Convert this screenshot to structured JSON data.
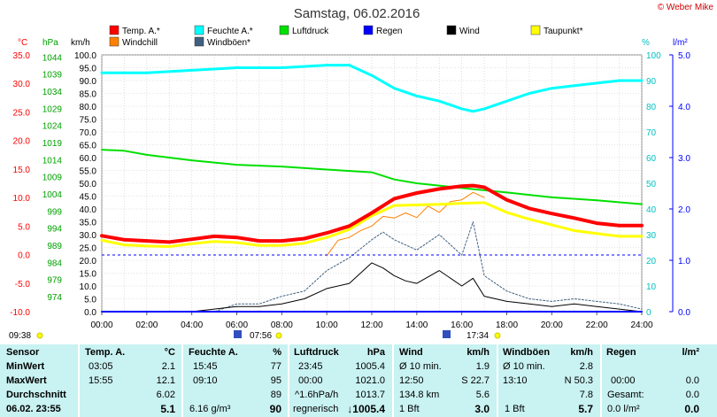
{
  "title": "Samstag, 06.02.2016",
  "copyright": "© Weber Mike",
  "units": {
    "celsius": "°C",
    "hpa": "hPa",
    "kmh": "km/h",
    "percent": "%",
    "lm2": "l/m²"
  },
  "legend": [
    {
      "label": "Temp. A.*",
      "color": "#ff0000"
    },
    {
      "label": "Feuchte A.*",
      "color": "#00ffff"
    },
    {
      "label": "Luftdruck",
      "color": "#00e000"
    },
    {
      "label": "Regen",
      "color": "#0000ff"
    },
    {
      "label": "Wind",
      "color": "#000000"
    },
    {
      "label": "Taupunkt*",
      "color": "#ffff00"
    },
    {
      "label": "Windchill",
      "color": "#ff8000"
    },
    {
      "label": "Windböen*",
      "color": "#406080"
    }
  ],
  "axes": {
    "temp_ticks": [
      "35.0",
      "30.0",
      "25.0",
      "20.0",
      "15.0",
      "10.0",
      "5.0",
      "0.0",
      "-5.0",
      "-10.0"
    ],
    "pressure_ticks": [
      "1044",
      "1039",
      "1034",
      "1029",
      "1024",
      "1019",
      "1014",
      "1009",
      "1004",
      "999",
      "994",
      "989",
      "984",
      "979",
      "974"
    ],
    "wind_ticks": [
      "100.0",
      "95.0",
      "90.0",
      "85.0",
      "80.0",
      "75.0",
      "70.0",
      "65.0",
      "60.0",
      "55.0",
      "50.0",
      "45.0",
      "40.0",
      "35.0",
      "30.0",
      "25.0",
      "20.0",
      "15.0",
      "10.0",
      "5.0",
      "0.0"
    ],
    "humidity_ticks": [
      "100",
      "90",
      "80",
      "70",
      "60",
      "50",
      "40",
      "30",
      "20",
      "10",
      "0"
    ],
    "rain_ticks": [
      "5.0",
      "4.0",
      "3.0",
      "2.0",
      "1.0",
      "0.0"
    ],
    "x_ticks": [
      "00:00",
      "02:00",
      "04:00",
      "06:00",
      "08:00",
      "10:00",
      "12:00",
      "14:00",
      "16:00",
      "18:00",
      "20:00",
      "22:00",
      "24:00"
    ]
  },
  "sun_markers": {
    "sunrise_left": "09:38",
    "sunrise": "07:56",
    "sunset": "17:34"
  },
  "chart_data": {
    "type": "line",
    "title": "Samstag, 06.02.2016",
    "x_unit": "hour",
    "xlim": [
      0,
      24
    ],
    "series": [
      {
        "name": "Temp. A.*",
        "axis": "°C",
        "ylim": [
          -10,
          35
        ],
        "x": [
          0,
          1,
          2,
          3,
          4,
          5,
          6,
          7,
          8,
          9,
          10,
          11,
          12,
          13,
          14,
          15,
          16,
          16.5,
          17,
          18,
          19,
          20,
          21,
          22,
          23,
          24
        ],
        "values": [
          3.3,
          2.6,
          2.4,
          2.2,
          2.7,
          3.2,
          3.0,
          2.4,
          2.4,
          2.8,
          3.8,
          5.0,
          7.3,
          9.8,
          10.8,
          11.5,
          12.0,
          12.1,
          11.8,
          9.6,
          8.1,
          7.2,
          6.4,
          5.5,
          5.1,
          5.1
        ]
      },
      {
        "name": "Feuchte A.*",
        "axis": "%",
        "ylim": [
          0,
          100
        ],
        "x": [
          0,
          2,
          4,
          6,
          8,
          10,
          11,
          12,
          13,
          14,
          15,
          16,
          16.5,
          17,
          18,
          19,
          20,
          21,
          22,
          23,
          24
        ],
        "values": [
          93,
          93,
          94,
          95,
          95,
          96,
          96,
          92,
          87,
          84,
          82,
          79,
          78,
          79,
          82,
          85,
          87,
          88,
          89,
          90,
          90
        ]
      },
      {
        "name": "Luftdruck",
        "axis": "hPa",
        "ylim": [
          974,
          1049
        ],
        "x": [
          0,
          1,
          2,
          3,
          4,
          6,
          8,
          10,
          12,
          13,
          14,
          16,
          18,
          20,
          22,
          24
        ],
        "values": [
          1021.3,
          1021.0,
          1019.8,
          1019.0,
          1018.2,
          1016.9,
          1016.4,
          1015.5,
          1014.7,
          1012.6,
          1011.5,
          1010.1,
          1008.8,
          1007.4,
          1006.5,
          1005.4
        ]
      },
      {
        "name": "Regen",
        "axis": "l/m²",
        "ylim": [
          0,
          5
        ],
        "x": [
          0,
          24
        ],
        "values": [
          0,
          0
        ]
      },
      {
        "name": "Wind",
        "axis": "km/h",
        "ylim": [
          0,
          100
        ],
        "x": [
          0,
          4,
          5,
          6,
          7,
          8,
          9,
          10,
          11,
          12,
          12.5,
          13,
          13.5,
          14,
          15,
          16,
          16.5,
          17,
          18,
          19,
          20,
          21,
          22,
          23,
          24
        ],
        "values": [
          0,
          0,
          1,
          2,
          2,
          3,
          5,
          9,
          11,
          19,
          17,
          14,
          12,
          11,
          16,
          10,
          13,
          6,
          4,
          3,
          2,
          3,
          2,
          1,
          0
        ]
      },
      {
        "name": "Taupunkt*",
        "axis": "°C",
        "ylim": [
          -10,
          35
        ],
        "x": [
          0,
          1,
          2,
          3,
          4,
          5,
          6,
          7,
          8,
          9,
          10,
          11,
          12,
          13,
          14,
          15,
          16,
          17,
          18,
          19,
          20,
          21,
          22,
          23,
          24
        ],
        "values": [
          2.5,
          1.7,
          1.5,
          1.4,
          1.9,
          2.3,
          2.1,
          1.6,
          1.6,
          2.0,
          3.0,
          4.4,
          6.8,
          8.6,
          8.7,
          8.8,
          9.0,
          9.1,
          7.4,
          6.2,
          5.2,
          4.2,
          3.7,
          3.2,
          3.2
        ]
      },
      {
        "name": "Windchill",
        "axis": "°C",
        "ylim": [
          -10,
          35
        ],
        "x": [
          10,
          10.5,
          11,
          11.5,
          12,
          12.5,
          13,
          13.5,
          14,
          14.5,
          15,
          15.5,
          16,
          16.5,
          17
        ],
        "values": [
          -0.2,
          2.5,
          3.0,
          4.2,
          5.0,
          6.7,
          6.4,
          7.3,
          6.5,
          8.5,
          7.4,
          9.3,
          9.6,
          10.9,
          10.0
        ]
      },
      {
        "name": "Windböen*",
        "axis": "km/h",
        "ylim": [
          0,
          100
        ],
        "x": [
          0,
          5,
          6,
          7,
          8,
          9,
          10,
          11,
          12,
          12.5,
          13,
          14,
          15,
          16,
          16.5,
          17,
          18,
          19,
          20,
          21,
          22,
          23,
          24
        ],
        "values": [
          0,
          0,
          3,
          3,
          6,
          8,
          16,
          21,
          28,
          31,
          28,
          24,
          30,
          22,
          35,
          14,
          8,
          5,
          4,
          5,
          4,
          3,
          1
        ]
      }
    ]
  },
  "stats": {
    "headers": {
      "sensor": "Sensor",
      "temp": "Temp. A.",
      "temp_unit": "°C",
      "hum": "Feuchte A.",
      "hum_unit": "%",
      "press": "Luftdruck",
      "press_unit": "hPa",
      "wind": "Wind",
      "wind_unit": "km/h",
      "gust": "Windböen",
      "gust_unit": "km/h",
      "rain": "Regen",
      "rain_unit": "l/m²"
    },
    "rows": [
      {
        "label": "MinWert",
        "temp_t": "03:05",
        "temp_v": "2.1",
        "hum_t": "15:45",
        "hum_v": "77",
        "press_t": "23:45",
        "press_v": "1005.4",
        "wind_t": "Ø 10 min.",
        "wind_v": "1.9",
        "gust_t": "Ø 10 min.",
        "gust_v": "2.8",
        "rain_t": "",
        "rain_v": ""
      },
      {
        "label": "MaxWert",
        "temp_t": "15:55",
        "temp_v": "12.1",
        "hum_t": "09:10",
        "hum_v": "95",
        "press_t": "00:00",
        "press_v": "1021.0",
        "wind_t": "12:50",
        "wind_v": "S 22.7",
        "gust_t": "13:10",
        "gust_v": "N 50.3",
        "rain_t": "00:00",
        "rain_v": "0.0"
      },
      {
        "label": "Durchschnitt",
        "temp_t": "",
        "temp_v": "6.02",
        "hum_t": "",
        "hum_v": "89",
        "press_t": "^1.6hPa/h",
        "press_v": "1013.7",
        "wind_t": "134.8 km",
        "wind_v": "5.6",
        "gust_t": "",
        "gust_v": "7.8",
        "rain_t": "Gesamt:",
        "rain_v": "0.0"
      },
      {
        "label": "06.02. 23:55",
        "temp_t": "",
        "temp_v": "5.1",
        "hum_t": "6.16 g/m³",
        "hum_v": "90",
        "press_t": "regnerisch",
        "press_v": "↓1005.4",
        "wind_t": "1 Bft",
        "wind_v": "3.0",
        "gust_t": "1 Bft",
        "gust_v": "5.7",
        "rain_t": "0.0 l/m²",
        "rain_v": "0.0"
      }
    ]
  }
}
